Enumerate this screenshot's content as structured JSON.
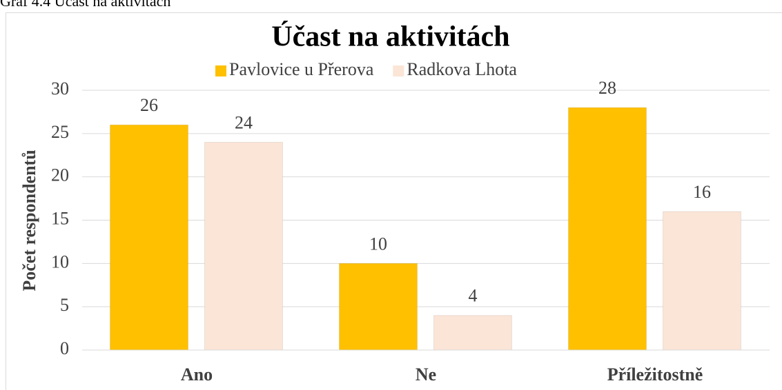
{
  "caption": "Graf 4.4 Účast na aktivitách",
  "chart_data": {
    "type": "bar",
    "title": "Účast na aktivitách",
    "y_label": "Počet respondentů",
    "categories": [
      "Ano",
      "Ne",
      "Příležitostně"
    ],
    "series": [
      {
        "name": "Pavlovice u Přerova",
        "color": "#ffc000",
        "values": [
          26,
          10,
          28
        ]
      },
      {
        "name": "Radkova Lhota",
        "color": "#fbe5d6",
        "values": [
          24,
          4,
          16
        ]
      }
    ],
    "ylim": [
      0,
      30
    ],
    "yticks": [
      0,
      5,
      10,
      15,
      20,
      25,
      30
    ],
    "grid": true,
    "legend": "top"
  }
}
